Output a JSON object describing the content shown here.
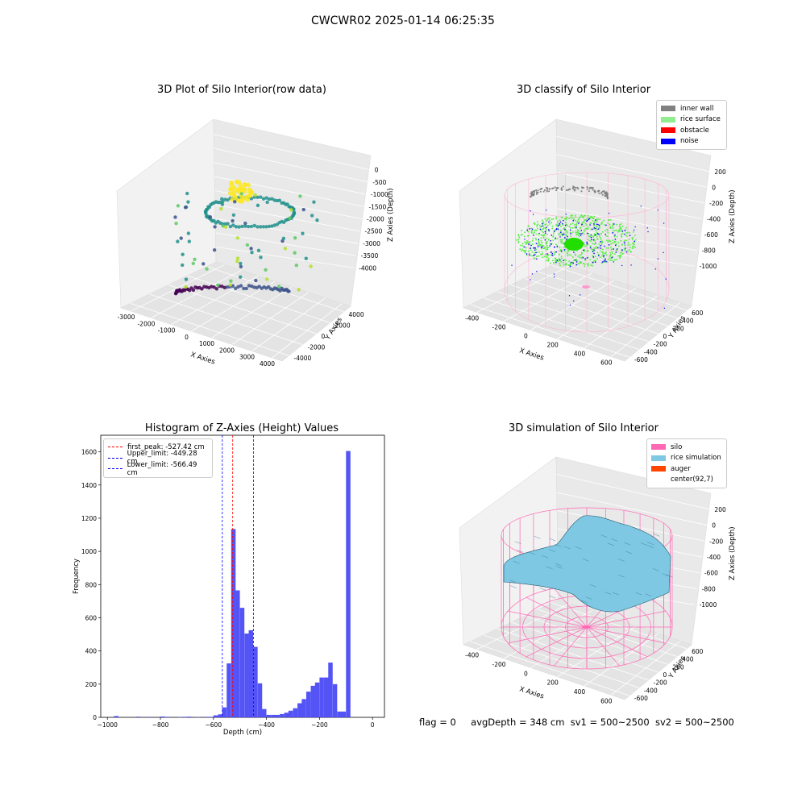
{
  "figure_title": "CWCWR02 2025-01-14 06:25:35",
  "footer": {
    "flag": "flag = 0",
    "avg_depth": "avgDepth = 348 cm",
    "sv1": "sv1 = 500~2500",
    "sv2": "sv2 = 500~2500"
  },
  "colors": {
    "inner_wall": "#808080",
    "rice_surface": "#90ee90",
    "obstacle": "#ff0000",
    "noise": "#0000ff",
    "silo": "#ff69b4",
    "rice_simulation": "#7ec8e3",
    "auger": "#ff4500",
    "histogram_bars": "#4b4bf5"
  },
  "chart_data": [
    {
      "type": "scatter",
      "title": "3D Plot of Silo Interior(row data)",
      "xlabel": "X Axies",
      "ylabel": "Y Axies",
      "zlabel": "Z Axies (Depth)",
      "x_ticks": [
        "-3000",
        "-2000",
        "-1000",
        "0",
        "1000",
        "2000",
        "3000",
        "4000"
      ],
      "y_ticks": [
        "-4000",
        "-2000",
        "0",
        "2000",
        "4000"
      ],
      "z_ticks": [
        "0",
        "-500",
        "-1000",
        "-1500",
        "-2000",
        "-2500",
        "-3000",
        "-3500",
        "-4000"
      ],
      "colormap": "viridis"
    },
    {
      "type": "scatter",
      "title": "3D classify of Silo Interior",
      "xlabel": "X Axies",
      "ylabel": "Y Axies",
      "zlabel": "Z Axies (Depth)",
      "x_ticks": [
        "-400",
        "-200",
        "0",
        "200",
        "400",
        "600"
      ],
      "y_ticks": [
        "-600",
        "-400",
        "-200",
        "0",
        "200",
        "400",
        "600"
      ],
      "z_ticks": [
        "200",
        "0",
        "-200",
        "-400",
        "-600",
        "-800",
        "-1000"
      ],
      "legend": [
        "inner wall",
        "rice surface",
        "obstacle",
        "noise"
      ],
      "legend_position": "top-right"
    },
    {
      "type": "bar",
      "title": "Histogram of Z-Axies (Height) Values",
      "xlabel": "Depth (cm)",
      "ylabel": "Frequency",
      "xlim": [
        -1000,
        0
      ],
      "ylim": [
        0,
        1700
      ],
      "x_ticks": [
        "−1000",
        "−800",
        "−600",
        "−400",
        "−200",
        "0"
      ],
      "y_ticks": [
        "0",
        "200",
        "400",
        "600",
        "800",
        "1000",
        "1200",
        "1400",
        "1600"
      ],
      "bin_width": 16.7,
      "bins": [
        [
          -975,
          8
        ],
        [
          -892,
          4
        ],
        [
          -850,
          3
        ],
        [
          -800,
          5
        ],
        [
          -783,
          3
        ],
        [
          -733,
          2
        ],
        [
          -717,
          3
        ],
        [
          -700,
          4
        ],
        [
          -667,
          2
        ],
        [
          -633,
          3
        ],
        [
          -617,
          3
        ],
        [
          -600,
          12
        ],
        [
          -583,
          18
        ],
        [
          -567,
          60
        ],
        [
          -550,
          325
        ],
        [
          -533,
          1135
        ],
        [
          -517,
          765
        ],
        [
          -500,
          660
        ],
        [
          -483,
          505
        ],
        [
          -467,
          525
        ],
        [
          -450,
          425
        ],
        [
          -433,
          205
        ],
        [
          -417,
          50
        ],
        [
          -400,
          15
        ],
        [
          -383,
          15
        ],
        [
          -367,
          15
        ],
        [
          -350,
          20
        ],
        [
          -333,
          28
        ],
        [
          -317,
          40
        ],
        [
          -300,
          55
        ],
        [
          -283,
          85
        ],
        [
          -267,
          110
        ],
        [
          -250,
          155
        ],
        [
          -233,
          190
        ],
        [
          -217,
          210
        ],
        [
          -200,
          240
        ],
        [
          -183,
          240
        ],
        [
          -167,
          330
        ],
        [
          -150,
          200
        ],
        [
          -133,
          35
        ],
        [
          -117,
          35
        ],
        [
          -100,
          1605
        ]
      ],
      "vlines": [
        {
          "label": "first_peak: -527.42 cm",
          "x": -527.42,
          "color": "#ff0000"
        },
        {
          "label": "Upper_limit: -449.28 cm",
          "x": -449.28,
          "color": "#0000ff"
        },
        {
          "label": "Lower_limit: -566.49 cm",
          "x": -566.49,
          "color": "#0000ff"
        }
      ],
      "legend_position": "top-left"
    },
    {
      "type": "surface",
      "title": "3D simulation of Silo Interior",
      "xlabel": "X Axies",
      "ylabel": "Y Axies",
      "zlabel": "Z Axies (Depth)",
      "x_ticks": [
        "-400",
        "-200",
        "0",
        "200",
        "400",
        "600"
      ],
      "y_ticks": [
        "-600",
        "-400",
        "-200",
        "0",
        "200",
        "400",
        "600"
      ],
      "z_ticks": [
        "200",
        "0",
        "-200",
        "-400",
        "-600",
        "-800",
        "-1000"
      ],
      "legend": [
        "silo",
        "rice simulation",
        "auger",
        "center(92,7)"
      ],
      "legend_position": "top-right"
    }
  ]
}
